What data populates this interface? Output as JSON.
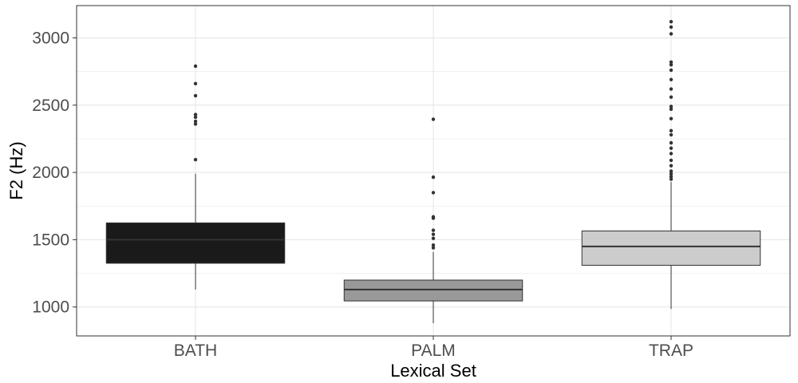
{
  "chart_data": {
    "type": "boxplot",
    "title": "",
    "xlabel": "Lexical Set",
    "ylabel": "F2 (Hz)",
    "ylim": [
      785,
      3240
    ],
    "y_ticks": [
      1000,
      1500,
      2000,
      2500,
      3000
    ],
    "grid": true,
    "legend": "none",
    "categories": [
      "BATH",
      "PALM",
      "TRAP"
    ],
    "boxes": [
      {
        "category": "BATH",
        "fill": "#1a1a1a",
        "median_color": "#333333",
        "whisker_low": 1130,
        "q1": 1325,
        "median": 1500,
        "q3": 1625,
        "whisker_high": 1990,
        "outliers": [
          2095,
          2360,
          2380,
          2410,
          2430,
          2570,
          2660,
          2790
        ]
      },
      {
        "category": "PALM",
        "fill": "#999999",
        "median_color": "#333333",
        "whisker_low": 880,
        "q1": 1045,
        "median": 1130,
        "q3": 1200,
        "whisker_high": 1410,
        "outliers": [
          1440,
          1460,
          1510,
          1540,
          1570,
          1660,
          1670,
          1850,
          1965,
          2395
        ]
      },
      {
        "category": "TRAP",
        "fill": "#cccccc",
        "median_color": "#333333",
        "whisker_low": 985,
        "q1": 1310,
        "median": 1450,
        "q3": 1565,
        "whisker_high": 1930,
        "outliers": [
          1950,
          1970,
          1990,
          2010,
          2050,
          2090,
          2140,
          2180,
          2220,
          2280,
          2310,
          2400,
          2470,
          2490,
          2560,
          2620,
          2690,
          2760,
          2800,
          2820,
          3030,
          3080,
          3120
        ]
      }
    ]
  }
}
